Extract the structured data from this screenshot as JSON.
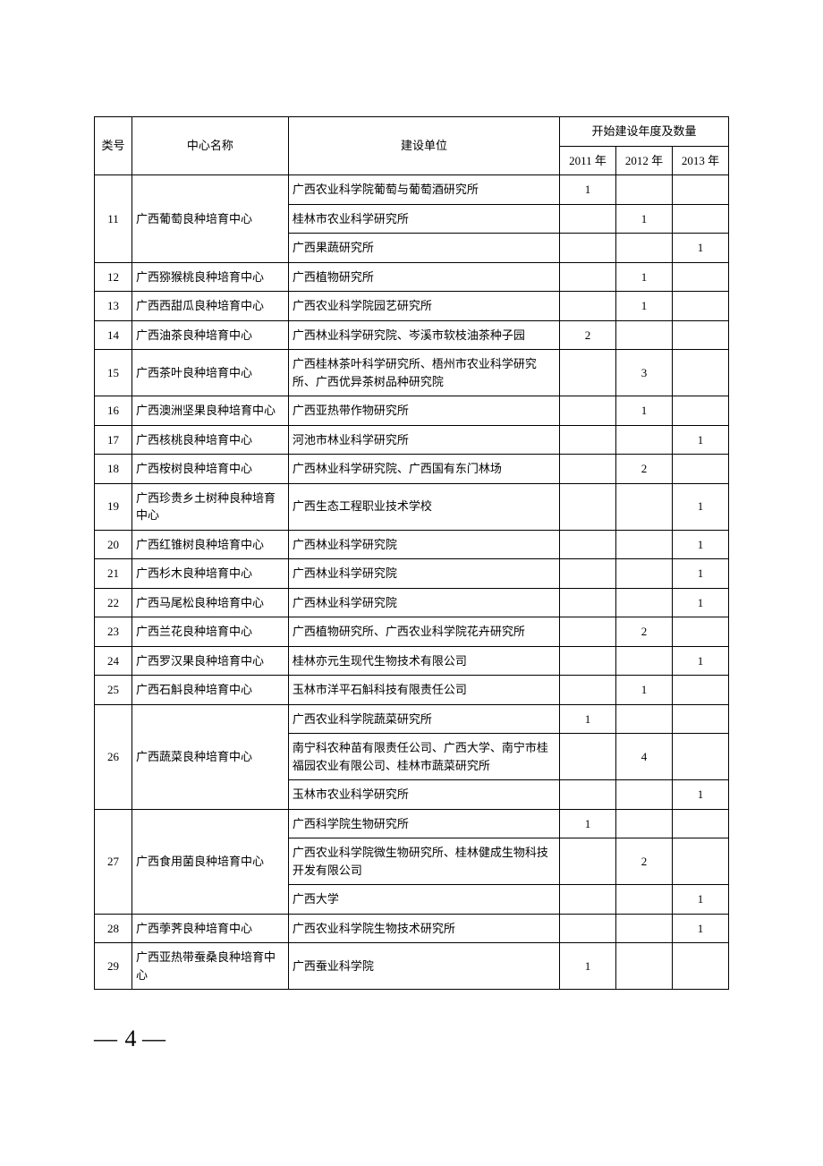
{
  "header": {
    "col_id": "类号",
    "col_center": "中心名称",
    "col_unit": "建设单位",
    "col_year_group": "开始建设年度及数量",
    "y2011": "2011 年",
    "y2012": "2012 年",
    "y2013": "2013 年"
  },
  "rows": [
    {
      "id": "11",
      "center": "广西葡萄良种培育中心",
      "units": [
        {
          "unit": "广西农业科学院葡萄与葡萄酒研究所",
          "y2011": "1",
          "y2012": "",
          "y2013": ""
        },
        {
          "unit": "桂林市农业科学研究所",
          "y2011": "",
          "y2012": "1",
          "y2013": ""
        },
        {
          "unit": "广西果蔬研究所",
          "y2011": "",
          "y2012": "",
          "y2013": "1"
        }
      ]
    },
    {
      "id": "12",
      "center": "广西猕猴桃良种培育中心",
      "units": [
        {
          "unit": "广西植物研究所",
          "y2011": "",
          "y2012": "1",
          "y2013": ""
        }
      ]
    },
    {
      "id": "13",
      "center": "广西西甜瓜良种培育中心",
      "units": [
        {
          "unit": "广西农业科学院园艺研究所",
          "y2011": "",
          "y2012": "1",
          "y2013": ""
        }
      ]
    },
    {
      "id": "14",
      "center": "广西油茶良种培育中心",
      "units": [
        {
          "unit": "广西林业科学研究院、岑溪市软枝油茶种子园",
          "y2011": "2",
          "y2012": "",
          "y2013": ""
        }
      ]
    },
    {
      "id": "15",
      "center": "广西茶叶良种培育中心",
      "units": [
        {
          "unit": "广西桂林茶叶科学研究所、梧州市农业科学研究所、广西优异茶树品种研究院",
          "y2011": "",
          "y2012": "3",
          "y2013": ""
        }
      ]
    },
    {
      "id": "16",
      "center": "广西澳洲坚果良种培育中心",
      "units": [
        {
          "unit": "广西亚热带作物研究所",
          "y2011": "",
          "y2012": "1",
          "y2013": ""
        }
      ]
    },
    {
      "id": "17",
      "center": "广西核桃良种培育中心",
      "units": [
        {
          "unit": "河池市林业科学研究所",
          "y2011": "",
          "y2012": "",
          "y2013": "1"
        }
      ]
    },
    {
      "id": "18",
      "center": "广西桉树良种培育中心",
      "units": [
        {
          "unit": "广西林业科学研究院、广西国有东门林场",
          "y2011": "",
          "y2012": "2",
          "y2013": ""
        }
      ]
    },
    {
      "id": "19",
      "center": "广西珍贵乡土树种良种培育中心",
      "units": [
        {
          "unit": "广西生态工程职业技术学校",
          "y2011": "",
          "y2012": "",
          "y2013": "1"
        }
      ]
    },
    {
      "id": "20",
      "center": "广西红锥树良种培育中心",
      "units": [
        {
          "unit": "广西林业科学研究院",
          "y2011": "",
          "y2012": "",
          "y2013": "1"
        }
      ]
    },
    {
      "id": "21",
      "center": "广西杉木良种培育中心",
      "units": [
        {
          "unit": "广西林业科学研究院",
          "y2011": "",
          "y2012": "",
          "y2013": "1"
        }
      ]
    },
    {
      "id": "22",
      "center": "广西马尾松良种培育中心",
      "units": [
        {
          "unit": "广西林业科学研究院",
          "y2011": "",
          "y2012": "",
          "y2013": "1"
        }
      ]
    },
    {
      "id": "23",
      "center": "广西兰花良种培育中心",
      "units": [
        {
          "unit": "广西植物研究所、广西农业科学院花卉研究所",
          "y2011": "",
          "y2012": "2",
          "y2013": ""
        }
      ]
    },
    {
      "id": "24",
      "center": "广西罗汉果良种培育中心",
      "units": [
        {
          "unit": "桂林亦元生现代生物技术有限公司",
          "y2011": "",
          "y2012": "",
          "y2013": "1"
        }
      ]
    },
    {
      "id": "25",
      "center": "广西石斛良种培育中心",
      "units": [
        {
          "unit": "玉林市洋平石斛科技有限责任公司",
          "y2011": "",
          "y2012": "1",
          "y2013": ""
        }
      ]
    },
    {
      "id": "26",
      "center": "广西蔬菜良种培育中心",
      "units": [
        {
          "unit": "广西农业科学院蔬菜研究所",
          "y2011": "1",
          "y2012": "",
          "y2013": ""
        },
        {
          "unit": "南宁科农种苗有限责任公司、广西大学、南宁市桂福园农业有限公司、桂林市蔬菜研究所",
          "y2011": "",
          "y2012": "4",
          "y2013": ""
        },
        {
          "unit": "玉林市农业科学研究所",
          "y2011": "",
          "y2012": "",
          "y2013": "1"
        }
      ]
    },
    {
      "id": "27",
      "center": "广西食用菌良种培育中心",
      "units": [
        {
          "unit": "广西科学院生物研究所",
          "y2011": "1",
          "y2012": "",
          "y2013": ""
        },
        {
          "unit": "广西农业科学院微生物研究所、桂林健成生物科技开发有限公司",
          "y2011": "",
          "y2012": "2",
          "y2013": ""
        },
        {
          "unit": "广西大学",
          "y2011": "",
          "y2012": "",
          "y2013": "1"
        }
      ]
    },
    {
      "id": "28",
      "center": "广西荸荠良种培育中心",
      "units": [
        {
          "unit": "广西农业科学院生物技术研究所",
          "y2011": "",
          "y2012": "",
          "y2013": "1"
        }
      ]
    },
    {
      "id": "29",
      "center": "广西亚热带蚕桑良种培育中心",
      "units": [
        {
          "unit": "广西蚕业科学院",
          "y2011": "1",
          "y2012": "",
          "y2013": ""
        }
      ]
    }
  ],
  "page_number": "4"
}
